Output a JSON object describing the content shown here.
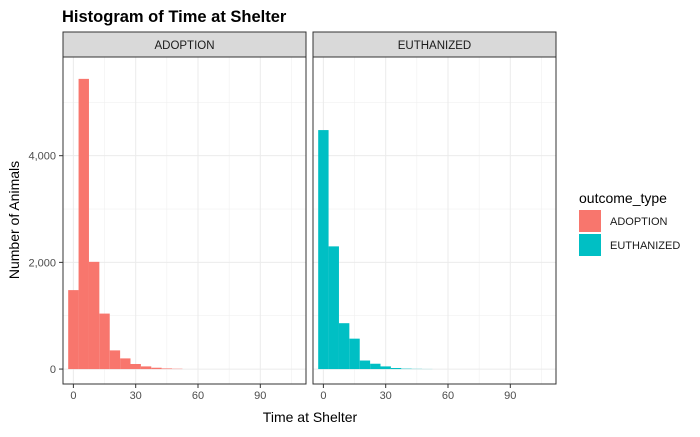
{
  "chart_data": {
    "type": "bar",
    "title": "Histogram of Time at Shelter",
    "xlabel": "Time at Shelter",
    "ylabel": "Number of Animals",
    "xlim": [
      -5,
      112
    ],
    "ylim": [
      -280,
      5850
    ],
    "x_ticks": [
      0,
      30,
      60,
      90
    ],
    "x_tick_labels": [
      "0",
      "30",
      "60",
      "90"
    ],
    "y_ticks": [
      0,
      2000,
      4000
    ],
    "y_tick_labels": [
      "0",
      "2,000",
      "4,000"
    ],
    "bin_width": 5,
    "bin_starts": [
      -2.5,
      2.5,
      7.5,
      12.5,
      17.5,
      22.5,
      27.5,
      32.5,
      37.5,
      42.5,
      47.5
    ],
    "grid": true,
    "legend": {
      "title": "outcome_type",
      "placement": "right",
      "entries": [
        "ADOPTION",
        "EUTHANIZED"
      ]
    },
    "series": [
      {
        "name": "ADOPTION",
        "color": "#F8766D",
        "values": [
          1480,
          5440,
          2010,
          1040,
          350,
          200,
          95,
          50,
          25,
          12,
          6
        ]
      },
      {
        "name": "EUTHANIZED",
        "color": "#00BFC4",
        "values": [
          4480,
          2300,
          860,
          570,
          160,
          100,
          50,
          20,
          8,
          4,
          2
        ]
      }
    ]
  }
}
